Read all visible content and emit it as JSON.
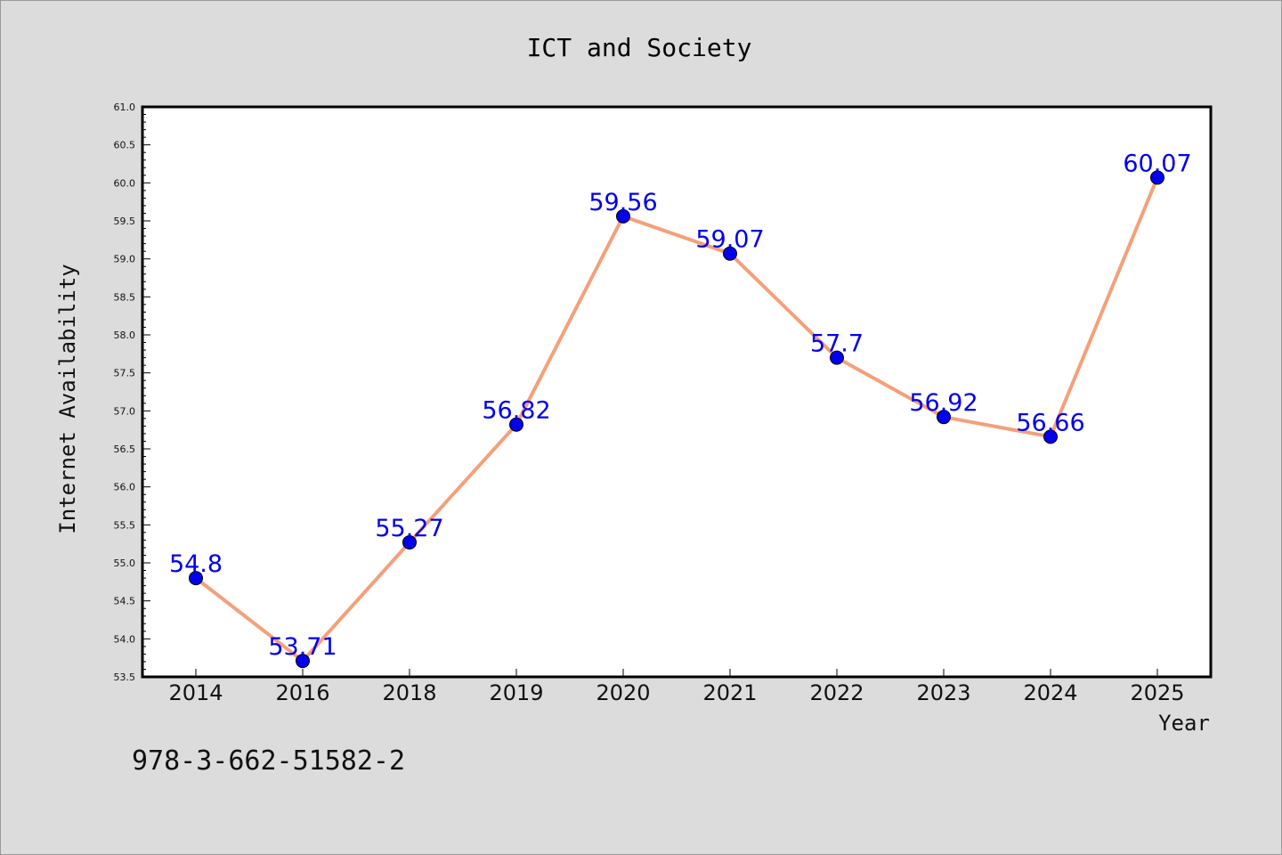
{
  "chart_data": {
    "type": "line",
    "title": "ICT and Society",
    "xlabel": "Year",
    "ylabel": "Internet Availability",
    "categories": [
      "2014",
      "2016",
      "2018",
      "2019",
      "2020",
      "2021",
      "2022",
      "2023",
      "2024",
      "2025"
    ],
    "series": [
      {
        "values": [
          54.8,
          53.71,
          55.27,
          56.82,
          59.56,
          59.07,
          57.7,
          56.92,
          56.66,
          60.07
        ],
        "labels": [
          "54.8",
          "53.71",
          "55.27",
          "56.82",
          "59.56",
          "59.07",
          "57.7",
          "56.92",
          "56.66",
          "60.07"
        ]
      }
    ],
    "ylim": [
      53.5,
      61.0
    ],
    "yticks": [
      "53.5",
      "54.0",
      "54.5",
      "55.0",
      "55.5",
      "56.0",
      "56.5",
      "57.0",
      "57.5",
      "58.0",
      "58.5",
      "59.0",
      "59.5",
      "60.0",
      "60.5",
      "61.0"
    ],
    "grid": false,
    "line_color": "#f4a07a",
    "marker_color": "#0000ee",
    "label_color": "#0000ee"
  },
  "footnote": "978-3-662-51582-2"
}
